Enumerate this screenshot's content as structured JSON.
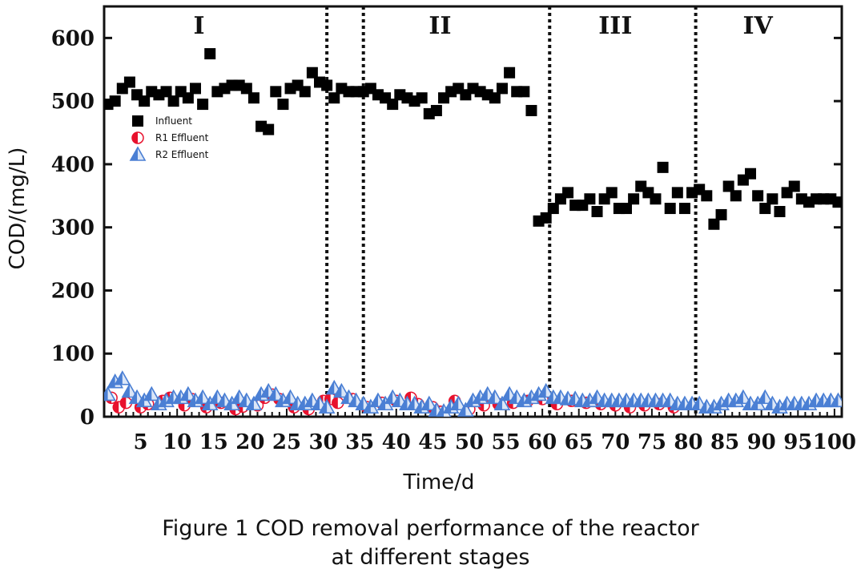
{
  "caption": {
    "line1": "Figure 1 COD removal performance of the reactor",
    "line2": "at different stages"
  },
  "chart_data": {
    "type": "scatter",
    "xlabel": "Time/d",
    "ylabel": "COD/(mg/L)",
    "xlim": [
      0,
      101
    ],
    "ylim": [
      0,
      650
    ],
    "x_ticks": [
      5,
      10,
      15,
      20,
      25,
      30,
      35,
      40,
      45,
      50,
      55,
      60,
      65,
      70,
      75,
      80,
      85,
      90,
      95,
      100
    ],
    "y_ticks": [
      0,
      100,
      200,
      300,
      400,
      500,
      600
    ],
    "legend_placement": "upper-left",
    "stage_boundaries": [
      30.5,
      35.5,
      61,
      81
    ],
    "stages": [
      {
        "label": "I",
        "x": 13
      },
      {
        "label": "II",
        "x": 46
      },
      {
        "label": "III",
        "x": 70
      },
      {
        "label": "IV",
        "x": 89.5
      }
    ],
    "series": [
      {
        "name": "Influent",
        "marker": "square",
        "color": "#000000",
        "x": [
          0.5,
          1.5,
          2.5,
          3.5,
          4.5,
          5.5,
          6.5,
          7.5,
          8.5,
          9.5,
          10.5,
          11.5,
          12.5,
          13.5,
          14.5,
          15.5,
          16.5,
          17.5,
          18.5,
          19.5,
          20.5,
          21.5,
          22.5,
          23.5,
          24.5,
          25.5,
          26.5,
          27.5,
          28.5,
          29.5,
          30.5,
          31.5,
          32.5,
          33.5,
          34.5,
          35.5,
          36.5,
          37.5,
          38.5,
          39.5,
          40.5,
          41.5,
          42.5,
          43.5,
          44.5,
          45.5,
          46.5,
          47.5,
          48.5,
          49.5,
          50.5,
          51.5,
          52.5,
          53.5,
          54.5,
          55.5,
          56.5,
          57.5,
          58.5,
          59.5,
          60.5,
          61.5,
          62.5,
          63.5,
          64.5,
          65.5,
          66.5,
          67.5,
          68.5,
          69.5,
          70.5,
          71.5,
          72.5,
          73.5,
          74.5,
          75.5,
          76.5,
          77.5,
          78.5,
          79.5,
          80.5,
          81.5,
          82.5,
          83.5,
          84.5,
          85.5,
          86.5,
          87.5,
          88.5,
          89.5,
          90.5,
          91.5,
          92.5,
          93.5,
          94.5,
          95.5,
          96.5,
          97.5,
          98.5,
          99.5,
          100.5
        ],
        "values": [
          495,
          500,
          520,
          530,
          510,
          500,
          515,
          510,
          515,
          500,
          515,
          505,
          520,
          495,
          575,
          515,
          520,
          525,
          525,
          520,
          505,
          460,
          455,
          515,
          495,
          520,
          525,
          515,
          545,
          530,
          525,
          505,
          520,
          515,
          515,
          515,
          520,
          510,
          505,
          495,
          510,
          505,
          500,
          505,
          480,
          485,
          505,
          515,
          520,
          510,
          520,
          515,
          510,
          505,
          520,
          545,
          515,
          515,
          485,
          310,
          315,
          330,
          345,
          355,
          335,
          335,
          345,
          325,
          345,
          355,
          330,
          330,
          345,
          365,
          355,
          345,
          395,
          330,
          355,
          330,
          355,
          360,
          350,
          305,
          320,
          365,
          350,
          375,
          385,
          350,
          330,
          345,
          325,
          355,
          365,
          345,
          340,
          345,
          345,
          345,
          340
        ],
        "note_trim": 0
      },
      {
        "name": "R1 Effluent",
        "marker": "half-circle",
        "color": "#e8112d",
        "x": [
          1,
          2,
          3,
          5,
          6,
          8,
          9,
          11,
          12,
          14,
          16,
          18,
          19,
          21,
          22,
          23,
          24,
          26,
          28,
          30,
          31,
          32,
          34,
          36,
          38,
          40,
          42,
          43,
          45,
          46,
          48,
          50,
          52,
          54,
          56,
          58,
          60,
          62,
          64,
          66,
          68,
          70,
          72,
          74,
          76,
          78
        ],
        "values": [
          30,
          15,
          22,
          15,
          20,
          25,
          30,
          18,
          28,
          15,
          22,
          12,
          16,
          18,
          30,
          35,
          28,
          15,
          12,
          25,
          28,
          22,
          28,
          15,
          22,
          25,
          30,
          20,
          15,
          8,
          25,
          12,
          18,
          20,
          22,
          25,
          28,
          20,
          25,
          22,
          20,
          18,
          15,
          18,
          20,
          15
        ]
      },
      {
        "name": "R2 Effluent",
        "marker": "triangle",
        "color": "#4a7fd4",
        "x": [
          0.5,
          1.5,
          2.5,
          3.5,
          4.5,
          5.5,
          6.5,
          7.5,
          8.5,
          9.5,
          10.5,
          11.5,
          12.5,
          13.5,
          14.5,
          15.5,
          16.5,
          17.5,
          18.5,
          19.5,
          20.5,
          21.5,
          22.5,
          23.5,
          24.5,
          25.5,
          26.5,
          27.5,
          28.5,
          29.5,
          30.5,
          31.5,
          32.5,
          33.5,
          34.5,
          35.5,
          36.5,
          37.5,
          38.5,
          39.5,
          40.5,
          41.5,
          42.5,
          43.5,
          44.5,
          45.5,
          46.5,
          47.5,
          48.5,
          49.5,
          50.5,
          51.5,
          52.5,
          53.5,
          54.5,
          55.5,
          56.5,
          57.5,
          58.5,
          59.5,
          60.5,
          61.5,
          62.5,
          63.5,
          64.5,
          65.5,
          66.5,
          67.5,
          68.5,
          69.5,
          70.5,
          71.5,
          72.5,
          73.5,
          74.5,
          75.5,
          76.5,
          77.5,
          78.5,
          79.5,
          80.5,
          81.5,
          82.5,
          83.5,
          84.5,
          85.5,
          86.5,
          87.5,
          88.5,
          89.5,
          90.5,
          91.5,
          92.5,
          93.5,
          94.5,
          95.5,
          96.5,
          97.5,
          98.5,
          99.5,
          100.5
        ],
        "values": [
          35,
          55,
          60,
          40,
          30,
          25,
          35,
          20,
          25,
          30,
          30,
          35,
          25,
          30,
          20,
          30,
          25,
          20,
          30,
          25,
          20,
          35,
          40,
          35,
          25,
          30,
          20,
          20,
          25,
          20,
          15,
          45,
          40,
          30,
          25,
          20,
          15,
          25,
          20,
          30,
          25,
          20,
          20,
          15,
          20,
          10,
          8,
          15,
          20,
          10,
          25,
          30,
          35,
          30,
          20,
          35,
          30,
          25,
          30,
          35,
          40,
          30,
          30,
          28,
          28,
          25,
          25,
          30,
          25,
          25,
          25,
          25,
          25,
          25,
          25,
          25,
          25,
          25,
          20,
          20,
          20,
          20,
          15,
          15,
          20,
          25,
          25,
          30,
          20,
          20,
          30,
          20,
          15,
          20,
          20,
          20,
          20,
          25,
          25,
          25,
          25
        ]
      }
    ]
  }
}
